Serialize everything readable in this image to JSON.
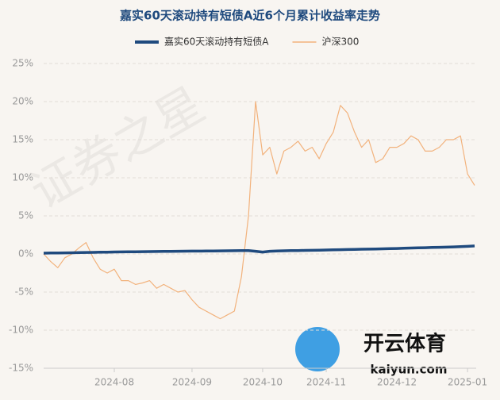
{
  "chart_data": {
    "type": "line",
    "title": "嘉实60天滚动持有短债A近6个月累计收益率走势",
    "watermark": "证券之星",
    "logo_text": "开云体育",
    "logo_url": "kaiyun.com",
    "categories": [
      null,
      null,
      null,
      null,
      null,
      null,
      null,
      null,
      null,
      null,
      "2024-08",
      null,
      null,
      null,
      null,
      null,
      null,
      null,
      null,
      null,
      null,
      "2024-09",
      null,
      null,
      null,
      null,
      null,
      null,
      null,
      null,
      null,
      "2024-10",
      null,
      null,
      null,
      null,
      null,
      null,
      null,
      null,
      "2024-11",
      null,
      null,
      null,
      null,
      null,
      null,
      null,
      null,
      null,
      "2024-12",
      null,
      null,
      null,
      null,
      null,
      null,
      null,
      null,
      null,
      "2025-01",
      null
    ],
    "series": [
      {
        "name": "嘉实60天滚动持有短债A",
        "color": "#1f4a7e",
        "width": 3.5,
        "values": [
          0.1,
          0.12,
          0.13,
          0.15,
          0.16,
          0.18,
          0.2,
          0.21,
          0.23,
          0.24,
          0.26,
          0.27,
          0.28,
          0.29,
          0.3,
          0.31,
          0.32,
          0.33,
          0.34,
          0.35,
          0.36,
          0.37,
          0.38,
          0.39,
          0.4,
          0.41,
          0.42,
          0.43,
          0.44,
          0.45,
          0.35,
          0.25,
          0.35,
          0.4,
          0.42,
          0.44,
          0.45,
          0.47,
          0.48,
          0.5,
          0.52,
          0.54,
          0.56,
          0.58,
          0.6,
          0.62,
          0.64,
          0.66,
          0.68,
          0.7,
          0.72,
          0.75,
          0.78,
          0.8,
          0.82,
          0.85,
          0.88,
          0.9,
          0.93,
          0.96,
          1.0,
          1.05
        ]
      },
      {
        "name": "沪深300",
        "color": "#f2b27c",
        "width": 1.2,
        "values": [
          0,
          -1,
          -1.8,
          -0.5,
          0,
          0.8,
          1.5,
          -0.5,
          -2,
          -2.5,
          -2,
          -3.5,
          -3.5,
          -4,
          -3.8,
          -3.5,
          -4.5,
          -4,
          -4.5,
          -5,
          -4.8,
          -6,
          -7,
          -7.5,
          -8,
          -8.5,
          -8,
          -7.5,
          -3,
          5,
          20,
          13,
          14,
          10.5,
          13.5,
          14,
          14.8,
          13.5,
          14,
          12.5,
          14.5,
          16,
          19.5,
          18.5,
          16,
          14,
          15,
          12,
          12.5,
          14,
          14,
          14.5,
          15.5,
          15,
          13.5,
          13.5,
          14,
          15,
          15,
          15.5,
          10.5,
          9
        ]
      }
    ],
    "ylim": [
      -15,
      25
    ],
    "yticks": [
      {
        "value": -15,
        "label": "-15%"
      },
      {
        "value": -10,
        "label": "-10%"
      },
      {
        "value": -5,
        "label": "-5%"
      },
      {
        "value": 0,
        "label": "0%"
      },
      {
        "value": 5,
        "label": "5%"
      },
      {
        "value": 10,
        "label": "10%"
      },
      {
        "value": 15,
        "label": "15%"
      },
      {
        "value": 20,
        "label": "20%"
      },
      {
        "value": 25,
        "label": "25%"
      }
    ],
    "grid": true
  }
}
